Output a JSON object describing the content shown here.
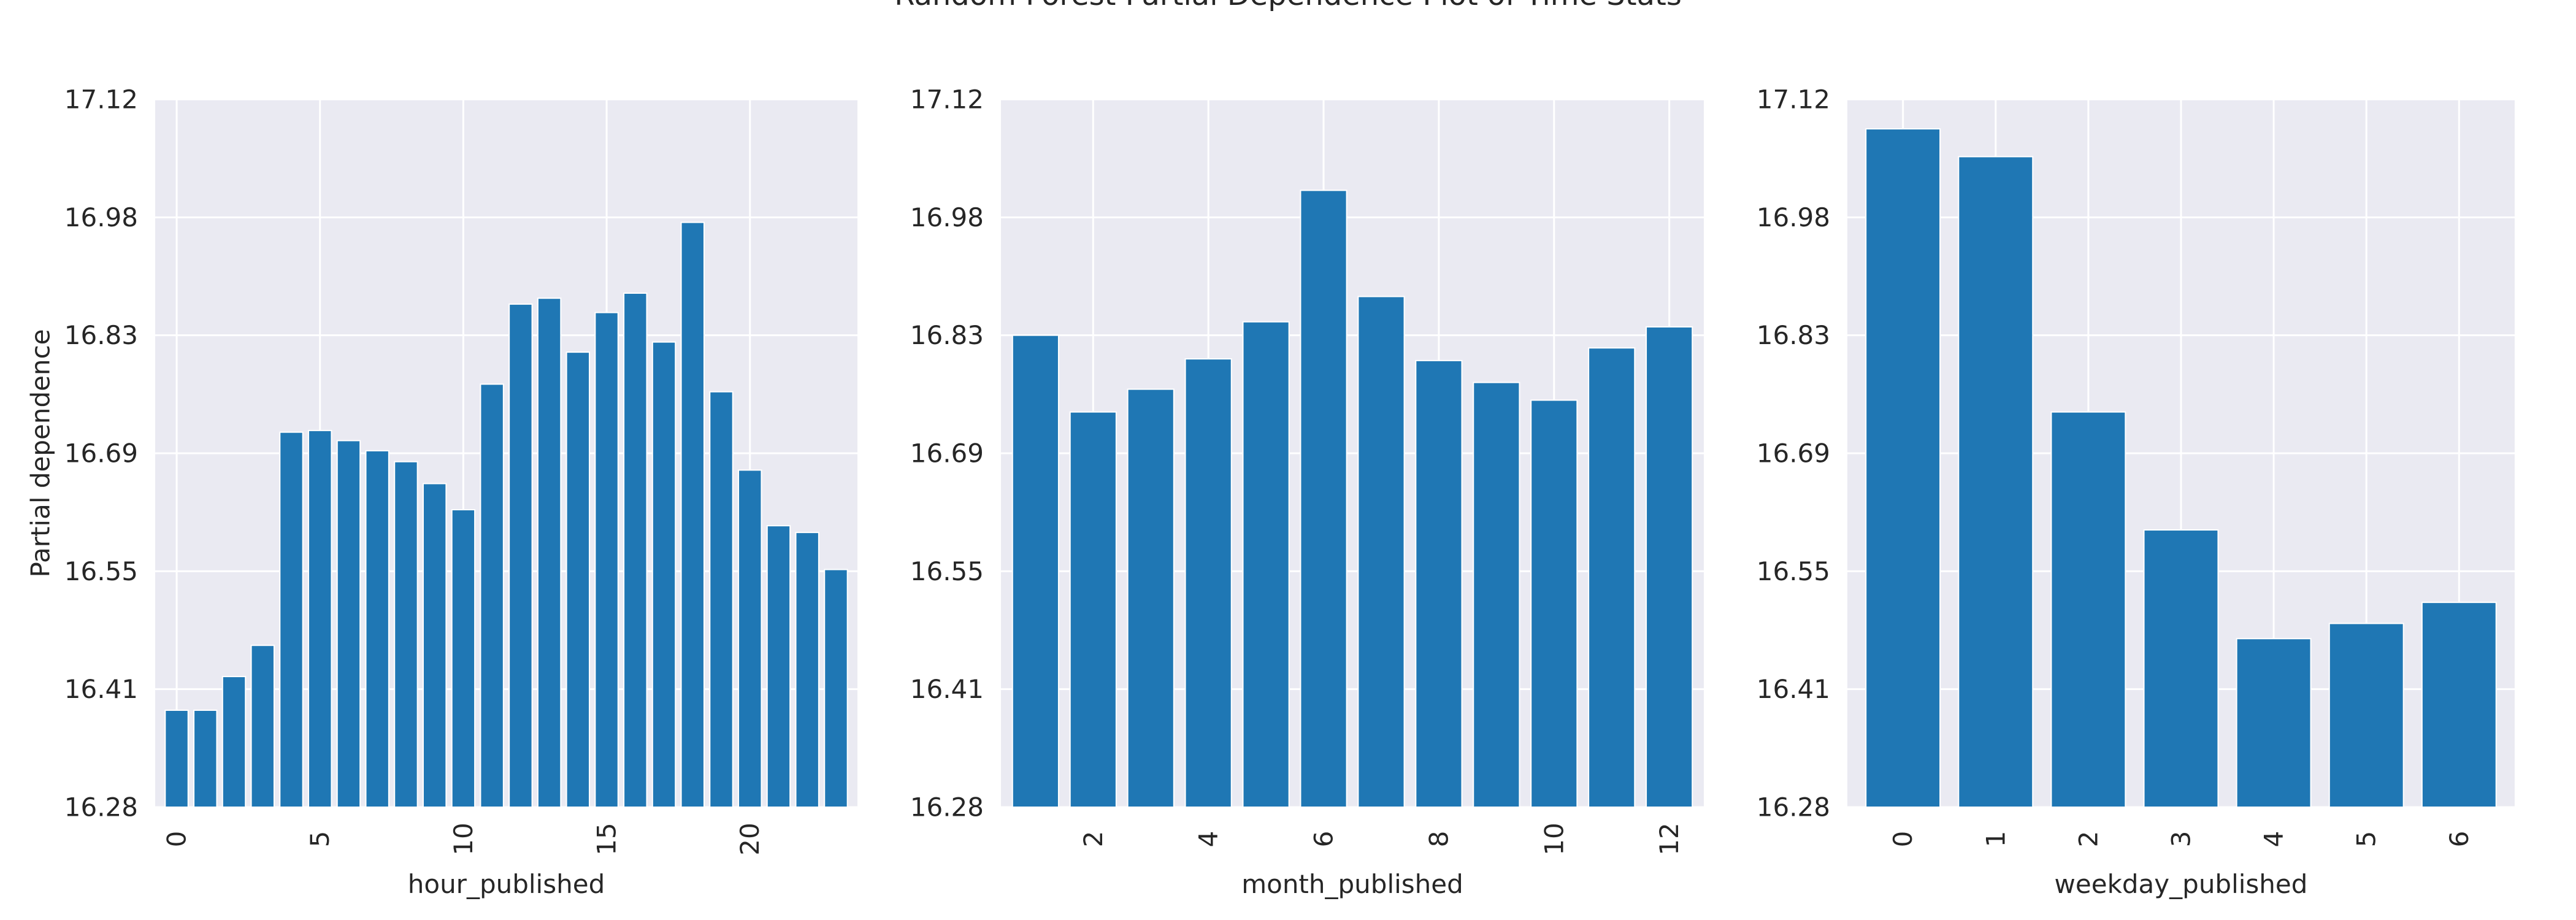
{
  "figure_title": "Random Forest Partial Dependence Plot of Time Stats",
  "colors": {
    "bar": "#1f77b4",
    "plot_background": "#eaeaf2",
    "grid": "#ffffff",
    "text": "#262626"
  },
  "chart_data": [
    {
      "type": "bar",
      "xlabel": "hour_published",
      "ylabel": "Partial dependence",
      "ylim": [
        16.28,
        17.12
      ],
      "yticks": [
        "16.28",
        "16.41",
        "16.55",
        "16.69",
        "16.83",
        "16.98",
        "17.12"
      ],
      "x": [
        0,
        1,
        2,
        3,
        4,
        5,
        6,
        7,
        8,
        9,
        10,
        11,
        12,
        13,
        14,
        15,
        16,
        17,
        18,
        19,
        20,
        21,
        22,
        23
      ],
      "xlim": [
        -0.75,
        23.75
      ],
      "xticks": [
        0,
        5,
        10,
        15,
        20
      ],
      "values": [
        16.395,
        16.395,
        16.435,
        16.472,
        16.725,
        16.727,
        16.715,
        16.703,
        16.69,
        16.664,
        16.633,
        16.782,
        16.877,
        16.884,
        16.82,
        16.867,
        16.89,
        16.832,
        16.974,
        16.773,
        16.68,
        16.614,
        16.606,
        16.562
      ],
      "grid": true
    },
    {
      "type": "bar",
      "xlabel": "month_published",
      "ylabel": "",
      "ylim": [
        16.28,
        17.12
      ],
      "yticks": [
        "16.28",
        "16.41",
        "16.55",
        "16.69",
        "16.83",
        "16.98",
        "17.12"
      ],
      "x": [
        1,
        2,
        3,
        4,
        5,
        6,
        7,
        8,
        9,
        10,
        11,
        12
      ],
      "xlim": [
        0.4,
        12.6
      ],
      "xticks": [
        2,
        4,
        6,
        8,
        10,
        12
      ],
      "values": [
        16.84,
        16.749,
        16.776,
        16.812,
        16.856,
        17.012,
        16.886,
        16.81,
        16.784,
        16.763,
        16.825,
        16.85
      ],
      "grid": true
    },
    {
      "type": "bar",
      "xlabel": "weekday_published",
      "ylabel": "",
      "ylim": [
        16.28,
        17.12
      ],
      "yticks": [
        "16.28",
        "16.41",
        "16.55",
        "16.69",
        "16.83",
        "16.98",
        "17.12"
      ],
      "x": [
        0,
        1,
        2,
        3,
        4,
        5,
        6
      ],
      "xlim": [
        -0.6,
        6.6
      ],
      "xticks": [
        0,
        1,
        2,
        3,
        4,
        5,
        6
      ],
      "values": [
        17.085,
        17.052,
        16.749,
        16.609,
        16.48,
        16.498,
        16.523
      ],
      "grid": true
    }
  ]
}
